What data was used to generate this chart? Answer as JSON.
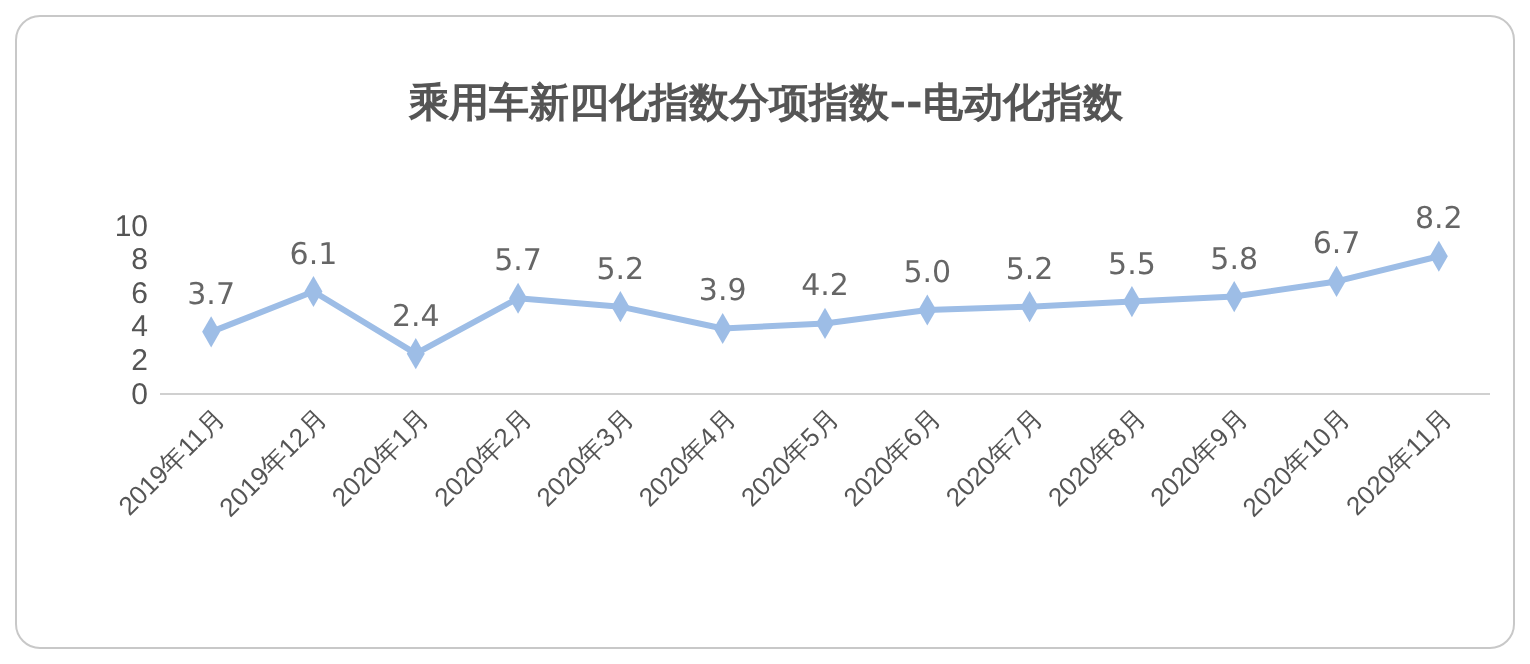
{
  "chart_data": {
    "type": "line",
    "title": "乘用车新四化指数分项指数--电动化指数",
    "categories": [
      "2019年11月",
      "2019年12月",
      "2020年1月",
      "2020年2月",
      "2020年3月",
      "2020年4月",
      "2020年5月",
      "2020年6月",
      "2020年7月",
      "2020年8月",
      "2020年9月",
      "2020年10月",
      "2020年11月"
    ],
    "series": [
      {
        "color": "#9dbde6",
        "values": [
          3.7,
          6.1,
          2.4,
          5.7,
          5.2,
          3.9,
          4.2,
          5.0,
          5.2,
          5.5,
          5.8,
          6.7,
          8.2
        ],
        "value_labels": [
          "3.7",
          "6.1",
          "2.4",
          "5.7",
          "5.2",
          "3.9",
          "4.2",
          "5.0",
          "5.2",
          "5.5",
          "5.8",
          "6.7",
          "8.2"
        ]
      }
    ],
    "ylim": [
      0,
      10
    ],
    "yticks": [
      0,
      2,
      4,
      6,
      8,
      10
    ],
    "marker": "diamond",
    "line_style": "solid"
  }
}
